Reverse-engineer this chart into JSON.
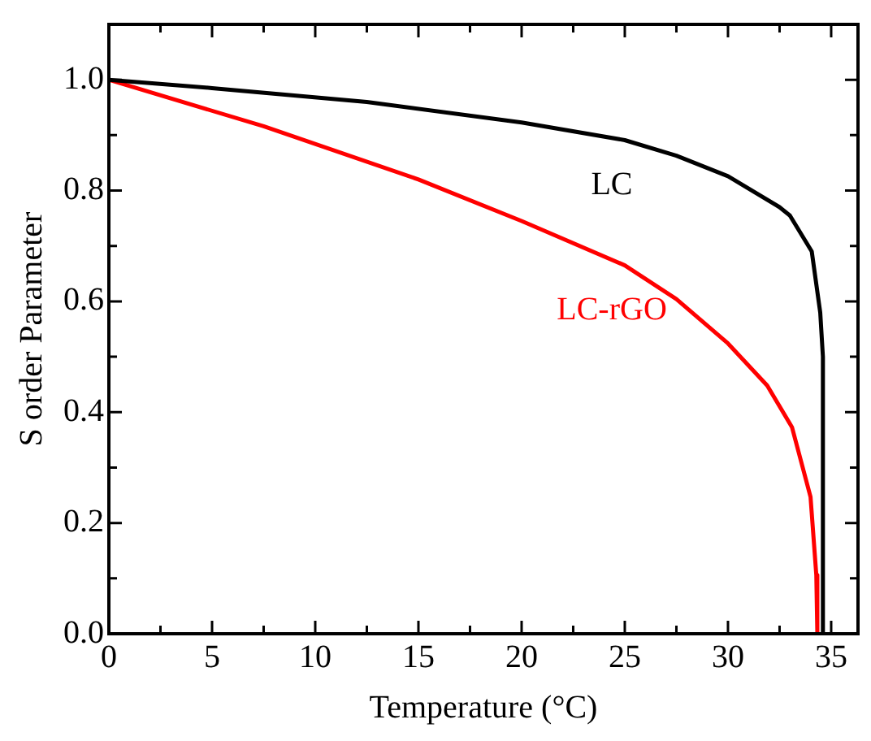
{
  "chart_data": {
    "type": "line",
    "xlabel": "Temperature (°C)",
    "ylabel": "S order Parameter",
    "series": [
      {
        "name": "LC",
        "color": "#000000",
        "x": [
          0,
          5,
          12.5,
          20,
          25,
          27.5,
          30,
          32.5,
          33,
          34.06,
          34.47,
          34.6,
          34.6
        ],
        "values": [
          1.0,
          0.985,
          0.96,
          0.923,
          0.891,
          0.863,
          0.826,
          0.77,
          0.755,
          0.69,
          0.58,
          0.5,
          0
        ]
      },
      {
        "name": "LC-rGO",
        "color": "#ff0000",
        "x": [
          0,
          7.5,
          15,
          20,
          25,
          27.5,
          30,
          31.9,
          33.1,
          34.0,
          34.28,
          34.33
        ],
        "values": [
          1.0,
          0.916,
          0.82,
          0.745,
          0.665,
          0.604,
          0.524,
          0.448,
          0.373,
          0.247,
          0.106,
          0
        ]
      }
    ],
    "xlim": [
      0,
      36.3
    ],
    "ylim": [
      0,
      1.1
    ],
    "xticks": [
      0,
      {
        "value": 2.5,
        "label": null
      },
      5,
      {
        "value": 7.5,
        "label": null
      },
      10,
      {
        "value": 12.5,
        "label": null
      },
      15,
      {
        "value": 17.5,
        "label": null
      },
      20,
      {
        "value": 22.5,
        "label": null
      },
      25,
      {
        "value": 27.5,
        "label": null
      },
      30,
      {
        "value": 32.5,
        "label": null
      },
      35
    ],
    "yticks": [
      {
        "value": 0,
        "label": "0.0"
      },
      {
        "value": 0.1,
        "label": null
      },
      {
        "value": 0.2,
        "label": "0.2"
      },
      {
        "value": 0.3,
        "label": null
      },
      {
        "value": 0.4,
        "label": "0.4"
      },
      {
        "value": 0.5,
        "label": null
      },
      {
        "value": 0.6,
        "label": "0.6"
      },
      {
        "value": 0.7,
        "label": null
      },
      {
        "value": 0.8,
        "label": "0.8"
      },
      {
        "value": 0.9,
        "label": null
      },
      {
        "value": 1.0,
        "label": "1.0"
      }
    ],
    "grid": false,
    "legend": false,
    "marker": "none",
    "line_style": "solid"
  }
}
